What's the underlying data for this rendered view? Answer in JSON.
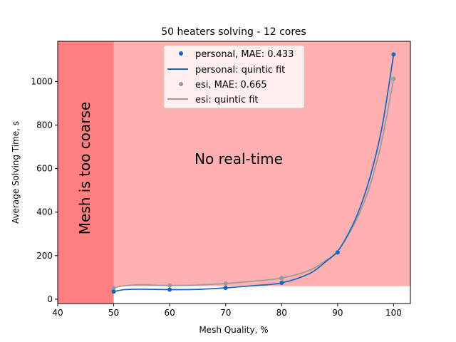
{
  "chart_data": {
    "type": "line",
    "title": "50 heaters solving - 12 cores",
    "xlabel": "Mesh Quality, %",
    "ylabel": "Average Solving Time, s",
    "xlim": [
      40,
      103
    ],
    "ylim": [
      -20,
      1185
    ],
    "xticks": [
      40,
      50,
      60,
      70,
      80,
      90,
      100
    ],
    "yticks": [
      0,
      200,
      400,
      600,
      800,
      1000
    ],
    "grid": false,
    "legend_position": "top-center",
    "regions": [
      {
        "label": "No real-time",
        "x_range": [
          40,
          103
        ],
        "y_range": [
          60,
          1185
        ],
        "color": "#ffb0b0"
      },
      {
        "label": "Mesh is too coarse",
        "x_range": [
          40,
          50
        ],
        "y_range": [
          -20,
          1185
        ],
        "color": "#ff8080"
      }
    ],
    "series": [
      {
        "name": "personal, MAE: 0.433",
        "kind": "points",
        "color": "#1565c0",
        "x": [
          50,
          60,
          70,
          80,
          90,
          100
        ],
        "y": [
          35,
          44,
          52,
          75,
          215,
          1125
        ]
      },
      {
        "name": "personal: quintic fit",
        "kind": "line",
        "color": "#1565c0",
        "x": [
          50,
          52,
          55,
          60,
          65,
          70,
          75,
          80,
          85,
          88,
          90,
          92,
          94,
          96,
          98,
          100
        ],
        "y": [
          35,
          44,
          46,
          44,
          45,
          52,
          62,
          75,
          118,
          175,
          220,
          305,
          420,
          580,
          800,
          1125
        ]
      },
      {
        "name": "esi, MAE: 0.665",
        "kind": "points",
        "color": "#999999",
        "x": [
          50,
          60,
          70,
          80,
          90,
          100
        ],
        "y": [
          52,
          63,
          72,
          97,
          215,
          1013
        ]
      },
      {
        "name": "esi: quintic fit",
        "kind": "line",
        "color": "#999999",
        "x": [
          50,
          52,
          55,
          60,
          65,
          70,
          75,
          80,
          85,
          88,
          90,
          92,
          94,
          96,
          98,
          100
        ],
        "y": [
          52,
          62,
          66,
          63,
          65,
          72,
          83,
          97,
          133,
          180,
          220,
          300,
          400,
          540,
          740,
          1013
        ]
      }
    ]
  }
}
